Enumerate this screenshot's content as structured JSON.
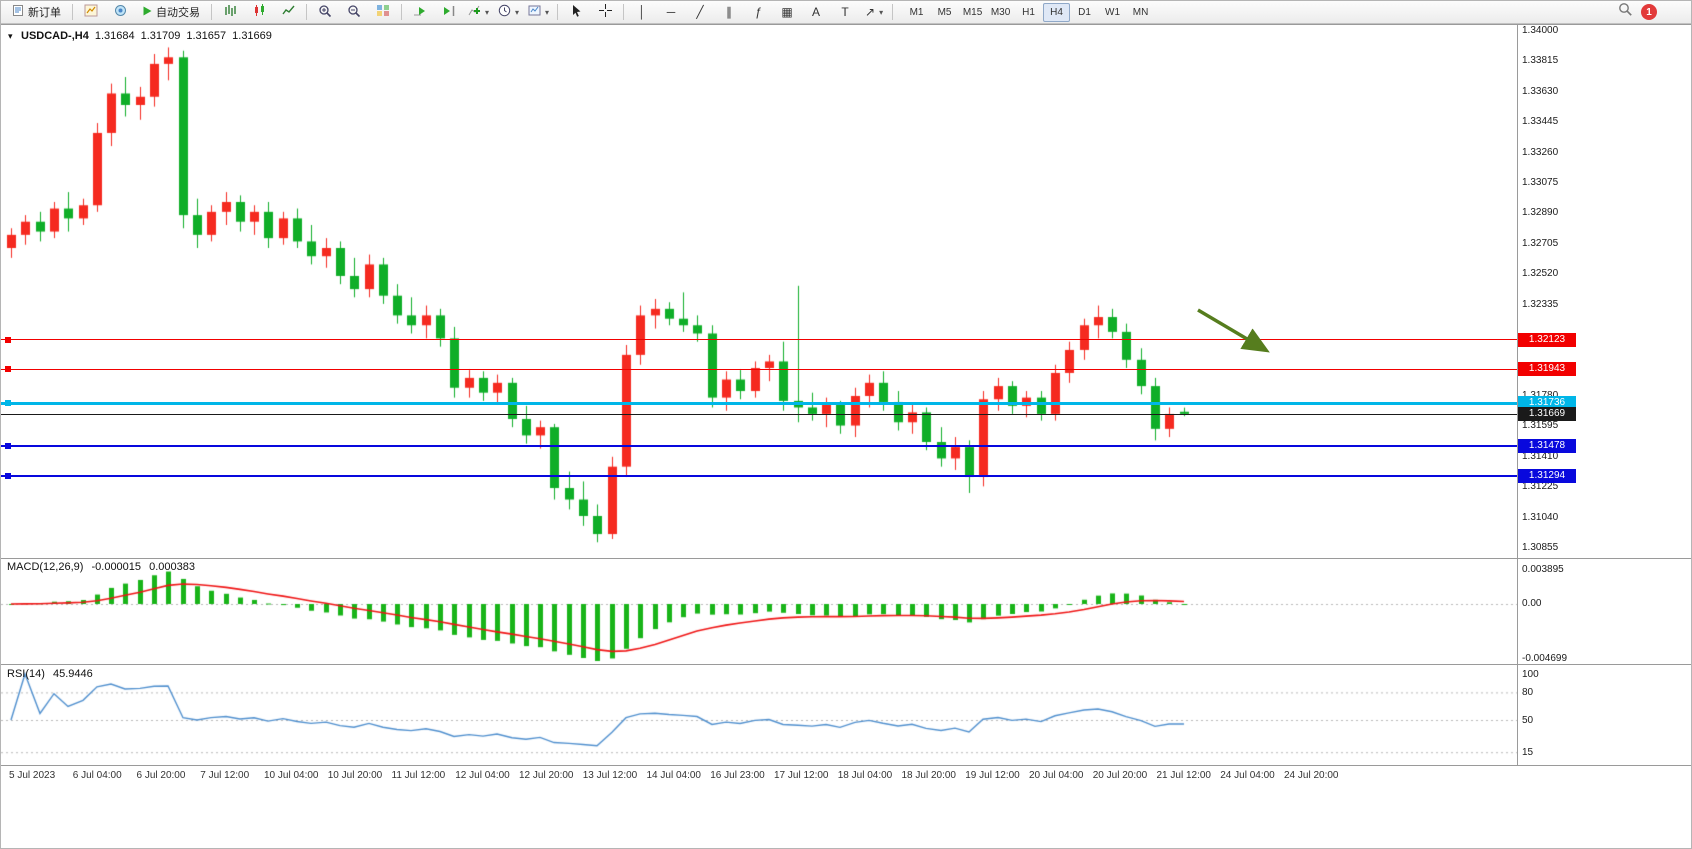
{
  "toolbar": {
    "new_order": "新订单",
    "auto_trading": "自动交易",
    "timeframes": [
      "M1",
      "M5",
      "M15",
      "M30",
      "H1",
      "H4",
      "D1",
      "W1",
      "MN"
    ],
    "active_timeframe": "H4",
    "notification_count": "1",
    "icon_glyphs": {
      "vline": "│",
      "hline": "─",
      "trend": "╱",
      "channel": "∥",
      "fibo": "ƒ",
      "grid": "▦",
      "text": "A",
      "label": "T",
      "shapes": "↗"
    }
  },
  "chart_header": {
    "symbol_period": "USDCAD-,H4",
    "open": "1.31684",
    "high": "1.31709",
    "low": "1.31657",
    "close": "1.31669"
  },
  "indicators": {
    "macd_label": "MACD(12,26,9)",
    "macd_value": "-0.000015",
    "macd_signal": "0.000383",
    "rsi_label": "RSI(14)",
    "rsi_value": "45.9446"
  },
  "chart_data": {
    "type": "candlestick",
    "symbol": "USDCAD-",
    "period": "H4",
    "colors": {
      "up": "#f52a20",
      "down": "#0fae28",
      "macd_hist": "#19b419",
      "macd_signal": "#ef1515",
      "rsi_line": "#4f8fce",
      "level_red": "#f20000",
      "level_cyan": "#00b6e8",
      "level_blue": "#0808dd",
      "bid": "#1a1a1a"
    },
    "price_axis_labels": [
      "1.34000",
      "1.33815",
      "1.33630",
      "1.33445",
      "1.33260",
      "1.33075",
      "1.32890",
      "1.32705",
      "1.32520",
      "1.32335",
      "1.31780",
      "1.31595",
      "1.31410",
      "1.31225",
      "1.31040",
      "1.30855"
    ],
    "levels": [
      {
        "price": 1.32123,
        "label": "1.32123",
        "color": "#f20000",
        "thickness": 1
      },
      {
        "price": 1.31943,
        "label": "1.31943",
        "color": "#f20000",
        "thickness": 1
      },
      {
        "price": 1.31736,
        "label": "1.31736",
        "color": "#00b6e8",
        "thickness": 3
      },
      {
        "price": 1.31478,
        "label": "1.31478",
        "color": "#0808dd",
        "thickness": 2
      },
      {
        "price": 1.31294,
        "label": "1.31294",
        "color": "#0808dd",
        "thickness": 2
      }
    ],
    "bid": {
      "price": 1.31669,
      "label": "1.31669",
      "color": "#1a1a1a"
    },
    "macd": {
      "params": [
        12,
        26,
        9
      ],
      "axis_labels": [
        "0.003895",
        "0.00",
        "-0.004699"
      ]
    },
    "rsi": {
      "period": 14,
      "level_lines": [
        80,
        50,
        15
      ],
      "axis_labels": [
        "100",
        "80",
        "50",
        "15"
      ]
    },
    "time_axis_labels": [
      "5 Jul 2023",
      "6 Jul 04:00",
      "6 Jul 20:00",
      "7 Jul 12:00",
      "10 Jul 04:00",
      "10 Jul 20:00",
      "11 Jul 12:00",
      "12 Jul 04:00",
      "12 Jul 20:00",
      "13 Jul 12:00",
      "14 Jul 04:00",
      "16 Jul 23:00",
      "17 Jul 12:00",
      "18 Jul 04:00",
      "18 Jul 20:00",
      "19 Jul 12:00",
      "20 Jul 04:00",
      "20 Jul 20:00",
      "21 Jul 12:00",
      "24 Jul 04:00",
      "24 Jul 20:00"
    ],
    "candles": [
      [
        1.3268,
        1.328,
        1.3262,
        1.3276
      ],
      [
        1.3276,
        1.3288,
        1.327,
        1.3284
      ],
      [
        1.3284,
        1.329,
        1.3272,
        1.3278
      ],
      [
        1.3278,
        1.3296,
        1.3274,
        1.3292
      ],
      [
        1.3292,
        1.3302,
        1.3278,
        1.3286
      ],
      [
        1.3286,
        1.3298,
        1.3282,
        1.3294
      ],
      [
        1.3294,
        1.3344,
        1.329,
        1.3338
      ],
      [
        1.3338,
        1.3368,
        1.333,
        1.3362
      ],
      [
        1.3362,
        1.3372,
        1.3348,
        1.3355
      ],
      [
        1.3355,
        1.3366,
        1.3346,
        1.336
      ],
      [
        1.336,
        1.3386,
        1.3354,
        1.338
      ],
      [
        1.338,
        1.339,
        1.337,
        1.3384
      ],
      [
        1.3384,
        1.3388,
        1.328,
        1.3288
      ],
      [
        1.3288,
        1.3298,
        1.3268,
        1.3276
      ],
      [
        1.3276,
        1.3294,
        1.3272,
        1.329
      ],
      [
        1.329,
        1.3302,
        1.3282,
        1.3296
      ],
      [
        1.3296,
        1.33,
        1.3278,
        1.3284
      ],
      [
        1.3284,
        1.3294,
        1.3276,
        1.329
      ],
      [
        1.329,
        1.3296,
        1.3268,
        1.3274
      ],
      [
        1.3274,
        1.329,
        1.327,
        1.3286
      ],
      [
        1.3286,
        1.3292,
        1.3268,
        1.3272
      ],
      [
        1.3272,
        1.3282,
        1.3258,
        1.3263
      ],
      [
        1.3263,
        1.3274,
        1.3256,
        1.3268
      ],
      [
        1.3268,
        1.3272,
        1.3246,
        1.3251
      ],
      [
        1.3251,
        1.3262,
        1.3238,
        1.3243
      ],
      [
        1.3243,
        1.3264,
        1.3238,
        1.3258
      ],
      [
        1.3258,
        1.3262,
        1.3234,
        1.3239
      ],
      [
        1.3239,
        1.3246,
        1.3222,
        1.3227
      ],
      [
        1.3227,
        1.3238,
        1.3216,
        1.3221
      ],
      [
        1.3221,
        1.3233,
        1.3213,
        1.3227
      ],
      [
        1.3227,
        1.3231,
        1.3208,
        1.3213
      ],
      [
        1.3213,
        1.322,
        1.3177,
        1.3183
      ],
      [
        1.3183,
        1.3194,
        1.3177,
        1.3189
      ],
      [
        1.3189,
        1.3193,
        1.3175,
        1.318
      ],
      [
        1.318,
        1.3191,
        1.3173,
        1.3186
      ],
      [
        1.3186,
        1.3189,
        1.3159,
        1.3164
      ],
      [
        1.3164,
        1.3172,
        1.3149,
        1.3154
      ],
      [
        1.3154,
        1.3163,
        1.3146,
        1.3159
      ],
      [
        1.3159,
        1.3161,
        1.3115,
        1.3122
      ],
      [
        1.3122,
        1.3132,
        1.3109,
        1.3115
      ],
      [
        1.3115,
        1.3126,
        1.3099,
        1.3105
      ],
      [
        1.3105,
        1.3112,
        1.3089,
        1.3094
      ],
      [
        1.3094,
        1.3141,
        1.3091,
        1.3135
      ],
      [
        1.3135,
        1.3209,
        1.3129,
        1.3203
      ],
      [
        1.3203,
        1.3233,
        1.3197,
        1.3227
      ],
      [
        1.3227,
        1.3237,
        1.3219,
        1.3231
      ],
      [
        1.3231,
        1.3235,
        1.3221,
        1.3225
      ],
      [
        1.3225,
        1.3241,
        1.3217,
        1.3221
      ],
      [
        1.3221,
        1.3227,
        1.3211,
        1.3216
      ],
      [
        1.3216,
        1.3221,
        1.3171,
        1.3177
      ],
      [
        1.3177,
        1.3193,
        1.3169,
        1.3188
      ],
      [
        1.3188,
        1.3194,
        1.3176,
        1.3181
      ],
      [
        1.3181,
        1.3199,
        1.3177,
        1.3195
      ],
      [
        1.3195,
        1.3203,
        1.3187,
        1.3199
      ],
      [
        1.3199,
        1.3211,
        1.3169,
        1.3175
      ],
      [
        1.3175,
        1.3245,
        1.3162,
        1.3171
      ],
      [
        1.3171,
        1.318,
        1.3163,
        1.3167
      ],
      [
        1.3167,
        1.3177,
        1.3159,
        1.3173
      ],
      [
        1.3173,
        1.3175,
        1.3155,
        1.316
      ],
      [
        1.316,
        1.3183,
        1.3153,
        1.3178
      ],
      [
        1.3178,
        1.3191,
        1.3171,
        1.3186
      ],
      [
        1.3186,
        1.3193,
        1.3169,
        1.3174
      ],
      [
        1.3174,
        1.3181,
        1.3157,
        1.3162
      ],
      [
        1.3162,
        1.3173,
        1.3155,
        1.3168
      ],
      [
        1.3168,
        1.3171,
        1.3145,
        1.315
      ],
      [
        1.315,
        1.3159,
        1.3135,
        1.314
      ],
      [
        1.314,
        1.3153,
        1.3133,
        1.3147
      ],
      [
        1.3147,
        1.3151,
        1.3119,
        1.3129
      ],
      [
        1.3129,
        1.3181,
        1.3123,
        1.3176
      ],
      [
        1.3176,
        1.3189,
        1.3169,
        1.3184
      ],
      [
        1.3184,
        1.3187,
        1.3167,
        1.3172
      ],
      [
        1.3172,
        1.3181,
        1.3165,
        1.3177
      ],
      [
        1.3177,
        1.3181,
        1.3163,
        1.3167
      ],
      [
        1.3167,
        1.3197,
        1.3163,
        1.3192
      ],
      [
        1.3192,
        1.3211,
        1.3186,
        1.3206
      ],
      [
        1.3206,
        1.3225,
        1.32,
        1.3221
      ],
      [
        1.3221,
        1.3233,
        1.3213,
        1.3226
      ],
      [
        1.3226,
        1.3231,
        1.3213,
        1.3217
      ],
      [
        1.3217,
        1.3222,
        1.3195,
        1.32
      ],
      [
        1.32,
        1.3207,
        1.3179,
        1.3184
      ],
      [
        1.3184,
        1.3189,
        1.3151,
        1.3158
      ],
      [
        1.3158,
        1.3171,
        1.3153,
        1.3167
      ],
      [
        1.31684,
        1.31709,
        1.31657,
        1.31669
      ]
    ]
  }
}
